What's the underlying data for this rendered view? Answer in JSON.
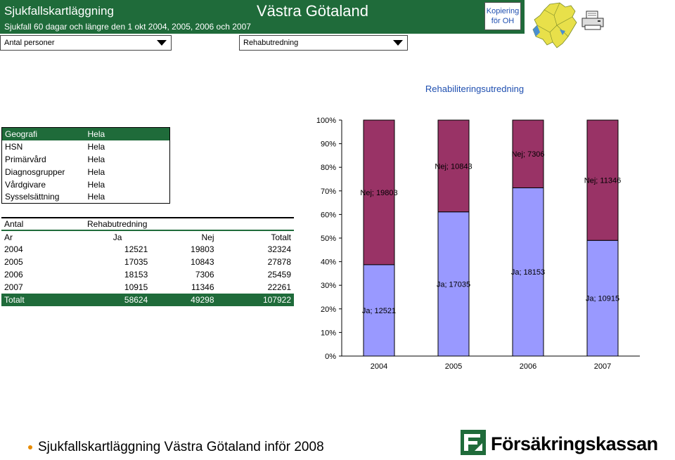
{
  "header": {
    "title": "Sjukfallskartläggning",
    "subtitle": "Sjukfall 60 dagar och längre den 1 okt 2004, 2005, 2006 och 2007",
    "region": "Västra Götaland",
    "kopiering_line1": "Kopiering",
    "kopiering_line2": "för OH"
  },
  "dropdowns": {
    "measure": "Antal personer",
    "rehab": "Rehabutredning"
  },
  "filters": [
    {
      "key": "Geografi",
      "value": "Hela"
    },
    {
      "key": "HSN",
      "value": "Hela"
    },
    {
      "key": "Primärvård",
      "value": "Hela"
    },
    {
      "key": "Diagnosgrupper",
      "value": "Hela"
    },
    {
      "key": "Vårdgivare",
      "value": "Hela"
    },
    {
      "key": "Sysselsättning",
      "value": "Hela"
    }
  ],
  "table": {
    "row0": {
      "label": "Antal",
      "value": "Rehabutredning"
    },
    "columns": [
      "Ar",
      "Ja",
      "Nej",
      "Totalt"
    ],
    "rows": [
      [
        "2004",
        "12521",
        "19803",
        "32324"
      ],
      [
        "2005",
        "17035",
        "10843",
        "27878"
      ],
      [
        "2006",
        "18153",
        "7306",
        "25459"
      ],
      [
        "2007",
        "10915",
        "11346",
        "22261"
      ]
    ],
    "total": [
      "Totalt",
      "58624",
      "49298",
      "107922"
    ]
  },
  "chart_data": {
    "type": "bar",
    "stacked": "percent",
    "title": "Rehabiliteringsutredning",
    "categories": [
      "2004",
      "2005",
      "2006",
      "2007"
    ],
    "series": [
      {
        "name": "Ja",
        "values": [
          12521,
          17035,
          18153,
          10915
        ],
        "color": "#9999ff"
      },
      {
        "name": "Nej",
        "values": [
          19803,
          10843,
          7306,
          11346
        ],
        "color": "#993366"
      }
    ],
    "yticks": [
      "0%",
      "10%",
      "20%",
      "30%",
      "40%",
      "50%",
      "60%",
      "70%",
      "80%",
      "90%",
      "100%"
    ],
    "ylim": [
      0,
      100
    ]
  },
  "footer": {
    "text": "Sjukfallskartläggning Västra Götaland inför 2008",
    "logo_text": "Försäkringskassan"
  },
  "colors": {
    "header_green": "#1f6b3a",
    "ja": "#9999ff",
    "nej": "#993366",
    "title_blue": "#1f4fb0"
  }
}
